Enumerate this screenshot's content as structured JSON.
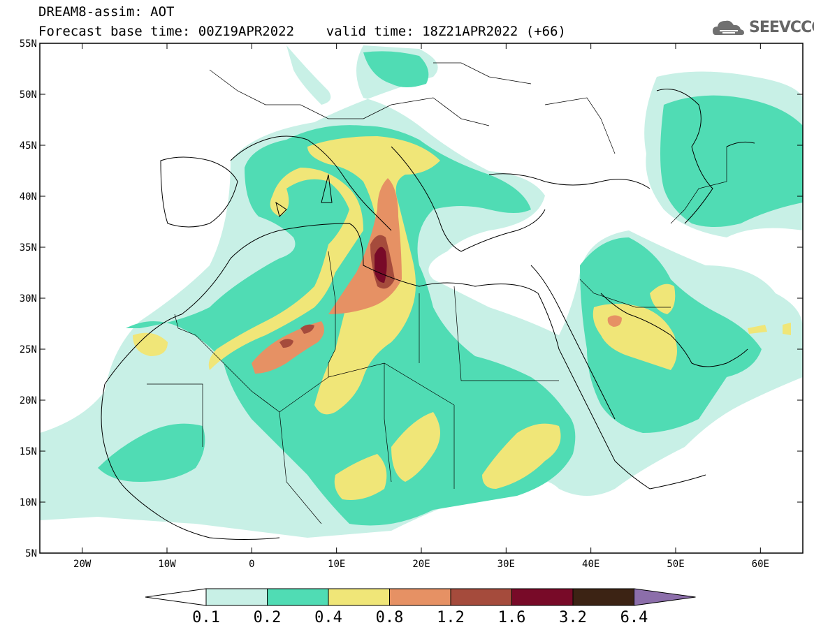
{
  "header": {
    "line1": "DREAM8-assim: AOT",
    "line2": "Forecast base time: 00Z19APR2022    valid time: 18Z21APR2022 (+66)"
  },
  "logo": {
    "text": "SEEVCCC",
    "icon": "cloud-icon"
  },
  "map": {
    "lon_range": [
      -25,
      65
    ],
    "lat_range": [
      5,
      55
    ],
    "lon_ticks": [
      {
        "value": -20,
        "label": "20W"
      },
      {
        "value": -10,
        "label": "10W"
      },
      {
        "value": 0,
        "label": "0"
      },
      {
        "value": 10,
        "label": "10E"
      },
      {
        "value": 20,
        "label": "20E"
      },
      {
        "value": 30,
        "label": "30E"
      },
      {
        "value": 40,
        "label": "40E"
      },
      {
        "value": 50,
        "label": "50E"
      },
      {
        "value": 60,
        "label": "60E"
      }
    ],
    "lat_ticks": [
      {
        "value": 5,
        "label": "5N"
      },
      {
        "value": 10,
        "label": "10N"
      },
      {
        "value": 15,
        "label": "15N"
      },
      {
        "value": 20,
        "label": "20N"
      },
      {
        "value": 25,
        "label": "25N"
      },
      {
        "value": 30,
        "label": "30N"
      },
      {
        "value": 35,
        "label": "35N"
      },
      {
        "value": 40,
        "label": "40N"
      },
      {
        "value": 45,
        "label": "45N"
      },
      {
        "value": 50,
        "label": "50N"
      },
      {
        "value": 55,
        "label": "55N"
      }
    ]
  },
  "colorbar": {
    "labels": [
      "0.1",
      "0.2",
      "0.4",
      "0.8",
      "1.2",
      "1.6",
      "3.2",
      "6.4"
    ],
    "colors": [
      "#ffffff",
      "#c8f0e6",
      "#50dcb4",
      "#f0e678",
      "#e69164",
      "#a54b3c",
      "#780a28",
      "#3c2314",
      "#8c6eaa"
    ]
  }
}
